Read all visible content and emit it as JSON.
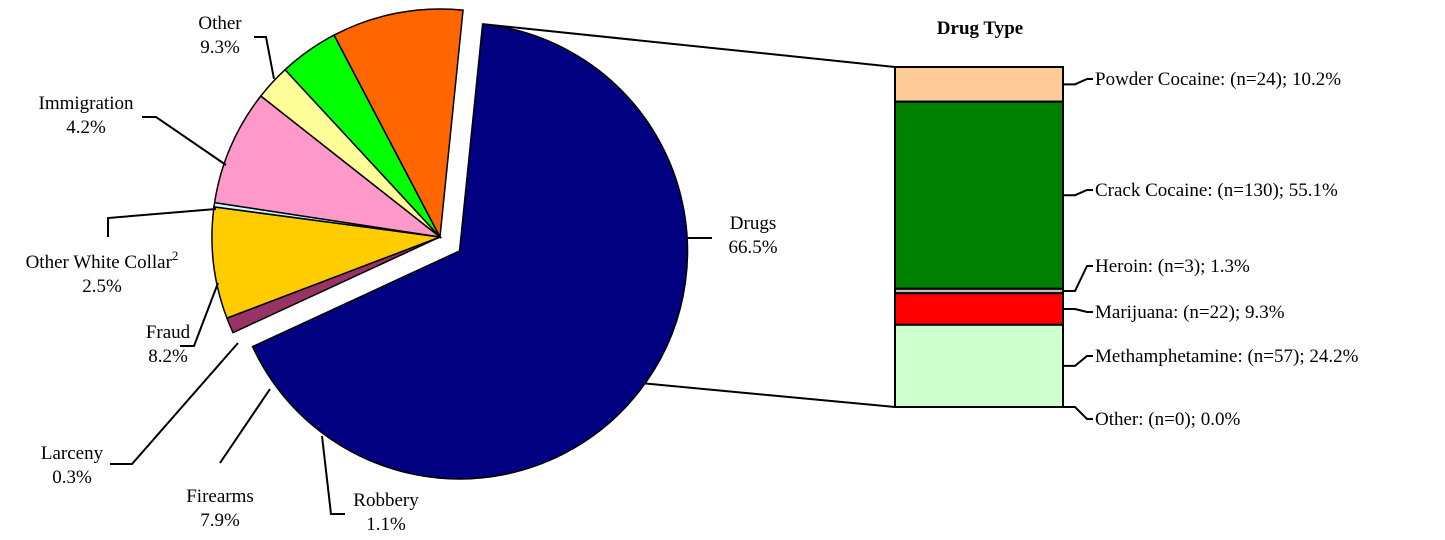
{
  "chart_data": [
    {
      "type": "pie",
      "series": [
        {
          "name": "Drugs",
          "percent_label": "66.5%",
          "value": 66.5,
          "color": "#000080",
          "exploded": true
        },
        {
          "name": "Robbery",
          "percent_label": "1.1%",
          "value": 1.1,
          "color": "#993366"
        },
        {
          "name": "Firearms",
          "percent_label": "7.9%",
          "value": 7.9,
          "color": "#FFCC00"
        },
        {
          "name": "Larceny",
          "percent_label": "0.3%",
          "value": 0.3,
          "color": "#CCFFFF"
        },
        {
          "name": "Fraud",
          "percent_label": "8.2%",
          "value": 8.2,
          "color": "#FF99CC"
        },
        {
          "name": "Other White Collar",
          "superscript": "2",
          "percent_label": "2.5%",
          "value": 2.5,
          "color": "#FFFF99"
        },
        {
          "name": "Immigration",
          "percent_label": "4.2%",
          "value": 4.2,
          "color": "#00FF00"
        },
        {
          "name": "Other",
          "percent_label": "9.3%",
          "value": 9.3,
          "color": "#FF6600"
        }
      ]
    },
    {
      "type": "stacked_bar",
      "title": "Drug Type",
      "segments": [
        {
          "label": "Powder Cocaine: (n=24); 10.2%",
          "value": 10.2,
          "color": "#FFCC99"
        },
        {
          "label": "Crack Cocaine: (n=130); 55.1%",
          "value": 55.1,
          "color": "#008000"
        },
        {
          "label": "Heroin: (n=3); 1.3%",
          "value": 1.3,
          "color": "#C0C0C0"
        },
        {
          "label": "Marijuana: (n=22); 9.3%",
          "value": 9.3,
          "color": "#FF0000"
        },
        {
          "label": "Methamphetamine: (n=57); 24.2%",
          "value": 24.2,
          "color": "#CCFFCC"
        },
        {
          "label": "Other: (n=0); 0.0%",
          "value": 0.0,
          "color": "#FFFFFF"
        }
      ]
    }
  ]
}
